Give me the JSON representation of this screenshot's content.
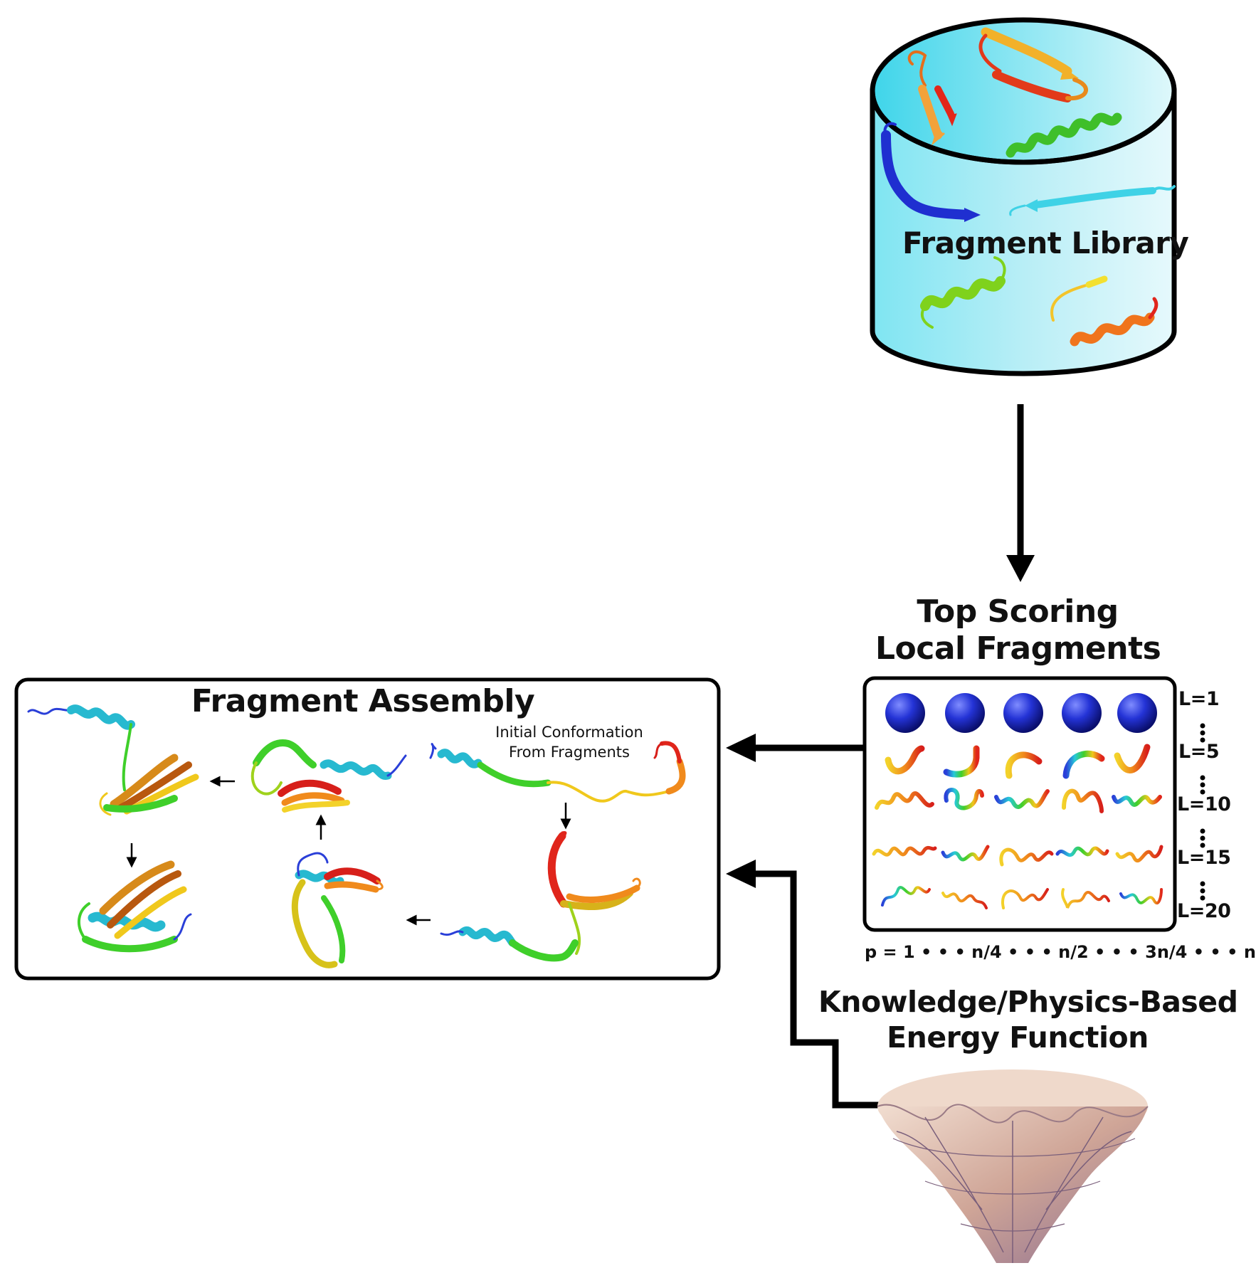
{
  "library": {
    "title": "Fragment Library"
  },
  "fragments_box": {
    "title_line1": "Top Scoring",
    "title_line2": "Local Fragments",
    "length_labels": [
      "L=1",
      "L=5",
      "L=10",
      "L=15",
      "L=20"
    ],
    "position_axis": "p = 1 • • •   n/4 • • • n/2 • • • 3n/4 • • • n"
  },
  "assembly": {
    "title": "Fragment Assembly",
    "initial_note_line1": "Initial Conformation",
    "initial_note_line2": "From Fragments"
  },
  "energy": {
    "title_line1": "Knowledge/Physics-Based",
    "title_line2": "Energy Function"
  },
  "colors": {
    "cylinder_top": "#7fe3f0",
    "cylinder_body": "#c9f2f7",
    "arrow": "#000000",
    "sphere": "#1f2fd0",
    "funnel": "#d9b3a0"
  }
}
